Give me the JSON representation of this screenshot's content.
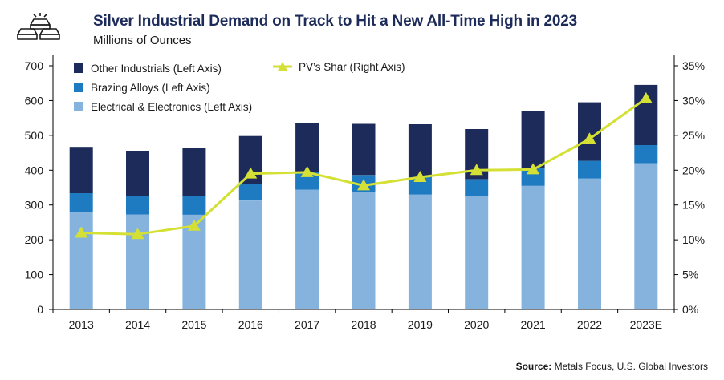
{
  "header": {
    "title": "Silver Industrial Demand on Track to Hit a New All-Time High in 2023",
    "subtitle": "Millions of Ounces"
  },
  "logo": {
    "icon": "silver-bars-icon"
  },
  "source": {
    "label": "Source:",
    "text": "Metals Focus, U.S. Global Investors"
  },
  "colors": {
    "other": "#1c2b5a",
    "brazing": "#1f7bc1",
    "electrical": "#85b3de",
    "pv_line": "#d4e034",
    "axis": "#000000"
  },
  "chart_data": {
    "type": "bar",
    "stacked": true,
    "categories": [
      "2013",
      "2014",
      "2015",
      "2016",
      "2017",
      "2018",
      "2019",
      "2020",
      "2021",
      "2022",
      "2023E"
    ],
    "series": [
      {
        "name": "Electrical & Electronics (Left Axis)",
        "axis": "left",
        "values": [
          278,
          273,
          272,
          313,
          344,
          336,
          330,
          326,
          355,
          376,
          420
        ]
      },
      {
        "name": "Brazing Alloys (Left Axis)",
        "axis": "left",
        "values": [
          56,
          52,
          55,
          48,
          52,
          50,
          50,
          48,
          50,
          51,
          52
        ]
      },
      {
        "name": "Other Industrials (Left Axis)",
        "axis": "left",
        "values": [
          133,
          131,
          137,
          137,
          139,
          147,
          152,
          144,
          164,
          168,
          173
        ]
      },
      {
        "name": "PV’s Shar (Right Axis)",
        "axis": "right",
        "type": "line",
        "values": [
          11.0,
          10.8,
          12.0,
          19.5,
          19.7,
          17.8,
          19.0,
          20.0,
          20.1,
          24.5,
          30.3
        ]
      }
    ],
    "left_axis": {
      "min": 0,
      "max": 700,
      "ticks": [
        "0",
        "100",
        "200",
        "300",
        "400",
        "500",
        "600",
        "700"
      ]
    },
    "right_axis": {
      "min": 0,
      "max": 35,
      "ticks": [
        "0%",
        "5%",
        "10%",
        "15%",
        "20%",
        "25%",
        "30%",
        "35%"
      ]
    },
    "legend": {
      "placement": "top-left",
      "items": [
        {
          "label": "Other Industrials (Left Axis)",
          "series": 2,
          "marker": "square"
        },
        {
          "label": "Brazing Alloys (Left Axis)",
          "series": 1,
          "marker": "square"
        },
        {
          "label": "Electrical & Electronics (Left Axis)",
          "series": 0,
          "marker": "square"
        },
        {
          "label": "PV’s Shar (Right Axis)",
          "series": 3,
          "marker": "line-triangle"
        }
      ]
    },
    "grid": false
  }
}
